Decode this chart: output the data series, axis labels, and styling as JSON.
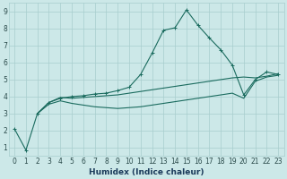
{
  "xlabel": "Humidex (Indice chaleur)",
  "bg_color": "#cce8e8",
  "line_color": "#1a6b5e",
  "grid_color": "#a8cece",
  "xlim": [
    -0.5,
    23.5
  ],
  "ylim": [
    0.5,
    9.5
  ],
  "xticks": [
    0,
    1,
    2,
    3,
    4,
    5,
    6,
    7,
    8,
    9,
    10,
    11,
    12,
    13,
    14,
    15,
    16,
    17,
    18,
    19,
    20,
    21,
    22,
    23
  ],
  "yticks": [
    1,
    2,
    3,
    4,
    5,
    6,
    7,
    8,
    9
  ],
  "line1_x": [
    0,
    1,
    2,
    3,
    4,
    5,
    6,
    7,
    8,
    9,
    10,
    11,
    12,
    13,
    14,
    15,
    16,
    17,
    18,
    19,
    20,
    21,
    22,
    23
  ],
  "line1_y": [
    2.1,
    0.85,
    3.0,
    3.65,
    3.9,
    4.0,
    4.05,
    4.15,
    4.2,
    4.35,
    4.55,
    5.3,
    6.55,
    7.9,
    8.05,
    9.1,
    8.2,
    7.45,
    6.75,
    5.85,
    4.1,
    5.0,
    5.45,
    5.3
  ],
  "line2_x": [
    2,
    3,
    4,
    5,
    6,
    7,
    8,
    9,
    10,
    11,
    12,
    13,
    14,
    15,
    16,
    17,
    18,
    19,
    20,
    21,
    22,
    23
  ],
  "line2_y": [
    3.0,
    3.65,
    3.95,
    3.9,
    3.95,
    4.0,
    4.05,
    4.1,
    4.2,
    4.3,
    4.4,
    4.5,
    4.6,
    4.7,
    4.8,
    4.9,
    5.0,
    5.1,
    5.15,
    5.1,
    5.2,
    5.35
  ],
  "line3_x": [
    2,
    3,
    4,
    5,
    6,
    7,
    8,
    9,
    10,
    11,
    12,
    13,
    14,
    15,
    16,
    17,
    18,
    19,
    20,
    21,
    22,
    23
  ],
  "line3_y": [
    3.0,
    3.55,
    3.75,
    3.6,
    3.5,
    3.4,
    3.35,
    3.3,
    3.35,
    3.4,
    3.5,
    3.6,
    3.7,
    3.8,
    3.9,
    4.0,
    4.1,
    4.2,
    3.9,
    4.9,
    5.15,
    5.25
  ],
  "tick_fontsize": 5.5,
  "xlabel_fontsize": 6.5
}
